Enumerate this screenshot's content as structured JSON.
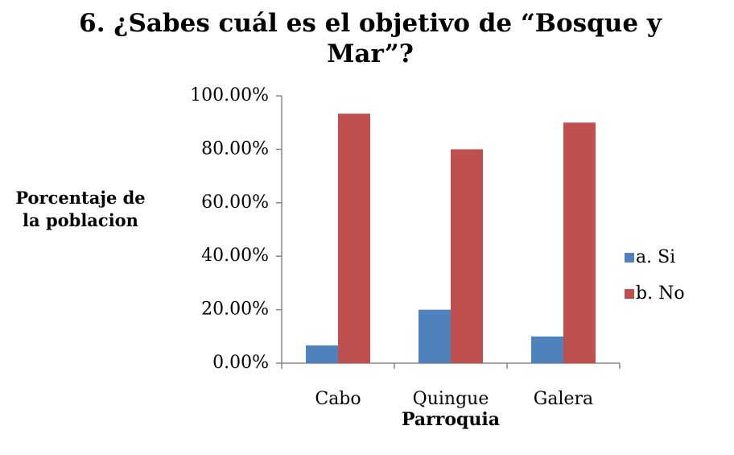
{
  "chart_data": {
    "type": "bar",
    "title": "6. ¿Sabes cuál es el objetivo de “Bosque y Mar”?",
    "x_label": "Parroquia",
    "y_label": "Porcentaje de la poblacion",
    "categories": [
      "Cabo",
      "Quingue",
      "Galera"
    ],
    "series": [
      {
        "name": "a. Si",
        "color": "#4f81bd",
        "values": [
          6.67,
          20,
          10
        ]
      },
      {
        "name": "b. No",
        "color": "#c0504d",
        "values": [
          93.33,
          80,
          90
        ]
      }
    ],
    "ylim": [
      0,
      100
    ],
    "yticks": [
      {
        "value": 0,
        "label": "0.00%"
      },
      {
        "value": 20,
        "label": "20.00%"
      },
      {
        "value": 40,
        "label": "40.00%"
      },
      {
        "value": 60,
        "label": "60.00%"
      },
      {
        "value": 80,
        "label": "80.00%"
      },
      {
        "value": 100,
        "label": "100.00%"
      }
    ],
    "legend": "right"
  }
}
